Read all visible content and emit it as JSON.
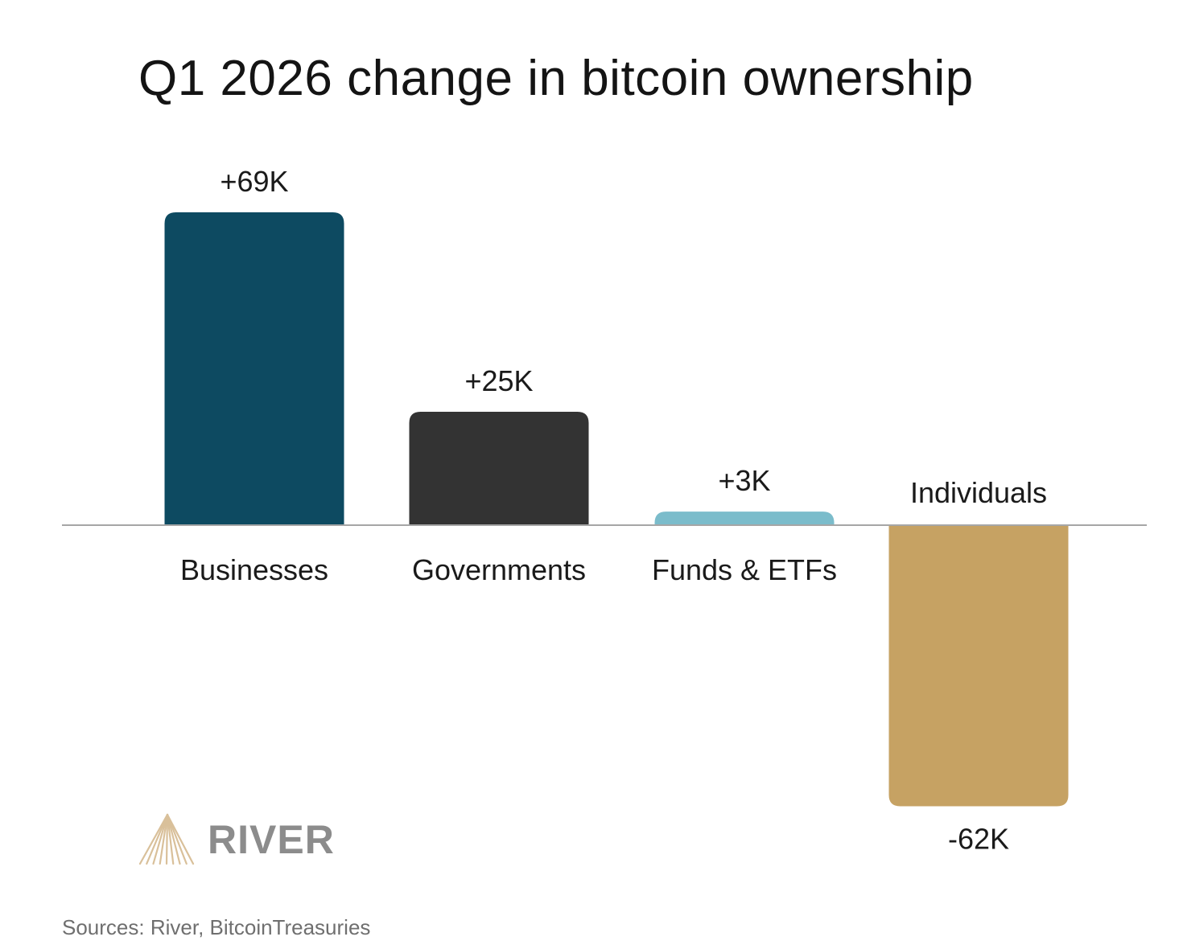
{
  "chart_data": {
    "type": "bar",
    "title": "Q1 2026 change in bitcoin ownership",
    "categories": [
      "Businesses",
      "Governments",
      "Funds & ETFs",
      "Individuals"
    ],
    "values": [
      69,
      25,
      3,
      -62
    ],
    "value_labels": [
      "+69K",
      "+25K",
      "+3K",
      "-62K"
    ],
    "unit": "K BTC",
    "colors": [
      "#0d4a61",
      "#333333",
      "#7bbccb",
      "#c6a263"
    ],
    "axis_color": "#a6a6a6",
    "ylim": [
      -62,
      69
    ],
    "grid": false,
    "legend": "none",
    "xlabel": "",
    "ylabel": ""
  },
  "branding": {
    "logo_icon": "river-logo-icon",
    "logo_text": "RIVER",
    "logo_color": "#d9c09a"
  },
  "footer": {
    "sources": "Sources: River, BitcoinTreasuries"
  }
}
